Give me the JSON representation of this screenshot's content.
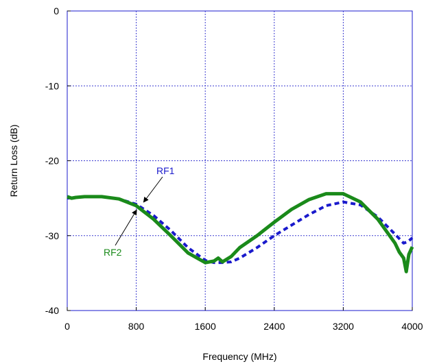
{
  "chart_data": {
    "type": "line",
    "xlabel": "Frequency (MHz)",
    "ylabel": "Return Loss (dB)",
    "xlim": [
      0,
      4000
    ],
    "ylim": [
      -40,
      0
    ],
    "xticks": [
      0,
      800,
      1600,
      2400,
      3200,
      4000
    ],
    "yticks": [
      0,
      -10,
      -20,
      -30,
      -40
    ],
    "xtick_labels": [
      "0",
      "800",
      "1600",
      "2400",
      "3200",
      "4000"
    ],
    "ytick_labels": [
      "0",
      "-10",
      "-20",
      "-30",
      "-40"
    ],
    "grid": true,
    "series": [
      {
        "name": "RF1",
        "color": "#1a1acc",
        "style": "dashed",
        "x": [
          0,
          100,
          200,
          400,
          600,
          800,
          1000,
          1200,
          1400,
          1600,
          1700,
          1800,
          1900,
          2000,
          2200,
          2400,
          2600,
          2800,
          3000,
          3200,
          3400,
          3600,
          3800,
          3900,
          3950,
          4000
        ],
        "y": [
          -25.0,
          -24.9,
          -24.8,
          -24.8,
          -25.1,
          -25.8,
          -27.3,
          -29.3,
          -31.6,
          -33.3,
          -33.6,
          -33.6,
          -33.5,
          -33.0,
          -31.6,
          -30.0,
          -28.6,
          -27.2,
          -26.0,
          -25.5,
          -25.9,
          -27.5,
          -29.8,
          -31.0,
          -30.8,
          -30.3
        ]
      },
      {
        "name": "RF2",
        "color": "#1a8a1a",
        "style": "solid",
        "x": [
          0,
          50,
          100,
          200,
          400,
          600,
          800,
          1000,
          1200,
          1400,
          1600,
          1700,
          1750,
          1800,
          1900,
          2000,
          2200,
          2400,
          2600,
          2800,
          3000,
          3200,
          3400,
          3600,
          3800,
          3850,
          3900,
          3930,
          3960,
          4000
        ],
        "y": [
          -24.8,
          -25.0,
          -24.9,
          -24.8,
          -24.8,
          -25.1,
          -26.0,
          -27.8,
          -30.0,
          -32.3,
          -33.6,
          -33.4,
          -33.0,
          -33.5,
          -32.8,
          -31.6,
          -30.0,
          -28.2,
          -26.5,
          -25.2,
          -24.4,
          -24.4,
          -25.5,
          -27.8,
          -31.0,
          -32.2,
          -33.0,
          -34.8,
          -32.5,
          -31.5
        ]
      }
    ],
    "annotations": [
      {
        "text": "RF1",
        "color": "#1a1acc",
        "point_to": [
          870,
          -25.8
        ]
      },
      {
        "text": "RF2",
        "color": "#1a8a1a",
        "point_to": [
          820,
          -26.3
        ]
      }
    ]
  }
}
